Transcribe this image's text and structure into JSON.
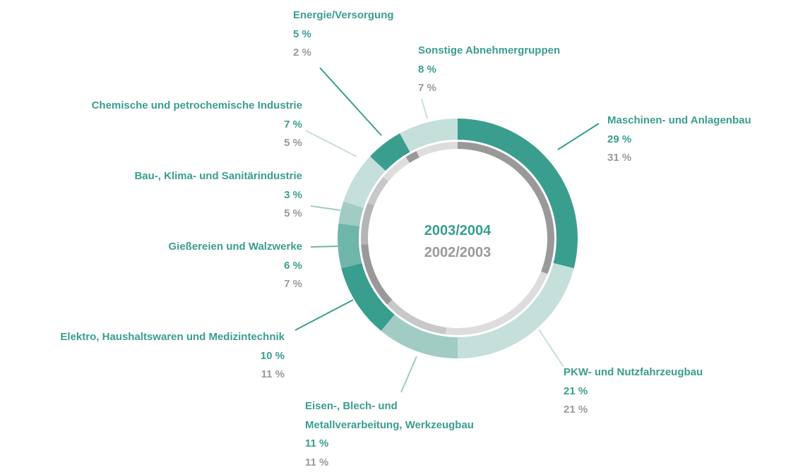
{
  "chart_data": {
    "type": "donut",
    "categories": [
      "Maschinen- und Anlagenbau",
      "PKW- und Nutzfahrzeugbau",
      "Eisen-, Blech- und\nMetallverarbeitung, Werkzeugbau",
      "Elektro, Haushaltswaren und Medizintechnik",
      "Gießereien und Walzwerke",
      "Bau-, Klima- und Sanitärindustrie",
      "Chemische und petrochemische Industrie",
      "Energie/Versorgung",
      "Sonstige Abnehmergruppen"
    ],
    "series": [
      {
        "name": "2003/2004",
        "values": [
          29,
          21,
          11,
          10,
          6,
          3,
          7,
          5,
          8
        ],
        "value_labels": [
          "29 %",
          "21 %",
          "11 %",
          "10 %",
          "6 %",
          "3 %",
          "7 %",
          "5 %",
          "8 %"
        ],
        "colors": [
          "#3a9e8f",
          "#c5dfda",
          "#a0ccc4",
          "#3a9e8f",
          "#6fb6aa",
          "#a0ccc4",
          "#c5dfda",
          "#3a9e8f",
          "#c5dfda"
        ]
      },
      {
        "name": "2002/2003",
        "values": [
          31,
          21,
          11,
          11,
          7,
          5,
          5,
          2,
          7
        ],
        "value_labels": [
          "31 %",
          "21 %",
          "11 %",
          "11 %",
          "7 %",
          "5 %",
          "5 %",
          "2 %",
          "7 %"
        ],
        "colors": [
          "#999999",
          "#dddddd",
          "#c8c8c8",
          "#999999",
          "#b5b5b5",
          "#c8c8c8",
          "#dddddd",
          "#999999",
          "#dddddd"
        ]
      }
    ]
  }
}
